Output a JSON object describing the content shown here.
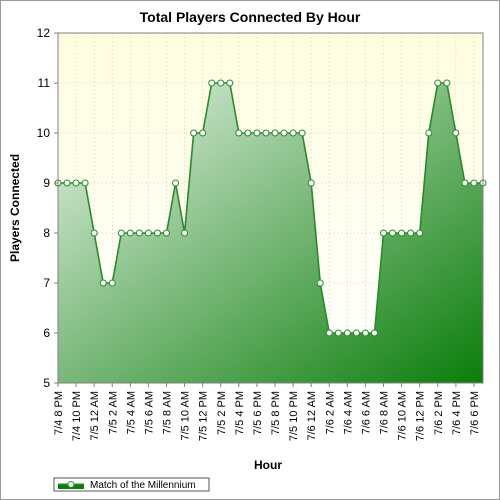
{
  "chart_data": {
    "type": "area",
    "title": "Total Players Connected By Hour",
    "xlabel": "Hour",
    "ylabel": "Players Connected",
    "ylim": [
      5,
      12
    ],
    "yticks": [
      5,
      6,
      7,
      8,
      9,
      10,
      11,
      12
    ],
    "grid": true,
    "legend_position": "bottom-left",
    "colors": {
      "plot_bg_top": "#fffde0",
      "plot_bg_bottom": "#ffffff",
      "line": "#2a8a2a",
      "area_light": "#e8f3e8",
      "area_dark": "#0a7d0a",
      "grid": "#c8c8a0",
      "marker_fill": "#ffffff"
    },
    "tick_labels": [
      "7/4 8 PM",
      "7/4 10 PM",
      "7/5 12 AM",
      "7/5 2 AM",
      "7/5 4 AM",
      "7/5 6 AM",
      "7/5 8 AM",
      "7/5 10 AM",
      "7/5 12 PM",
      "7/5 2 PM",
      "7/5 4 PM",
      "7/5 6 PM",
      "7/5 8 PM",
      "7/5 10 PM",
      "7/6 12 AM",
      "7/6 2 AM",
      "7/6 4 AM",
      "7/6 6 AM",
      "7/6 8 AM",
      "7/6 10 AM",
      "7/6 12 PM",
      "7/6 2 PM",
      "7/6 4 PM",
      "7/6 6 PM"
    ],
    "series": [
      {
        "name": "Match of the Millennium",
        "values": [
          9,
          9,
          9,
          9,
          8,
          7,
          7,
          8,
          8,
          8,
          8,
          8,
          8,
          9,
          8,
          10,
          10,
          11,
          11,
          11,
          10,
          10,
          10,
          10,
          10,
          10,
          10,
          10,
          9,
          7,
          6,
          6,
          6,
          6,
          6,
          6,
          8,
          8,
          8,
          8,
          8,
          10,
          11,
          11,
          10,
          9,
          9,
          9
        ]
      }
    ]
  }
}
